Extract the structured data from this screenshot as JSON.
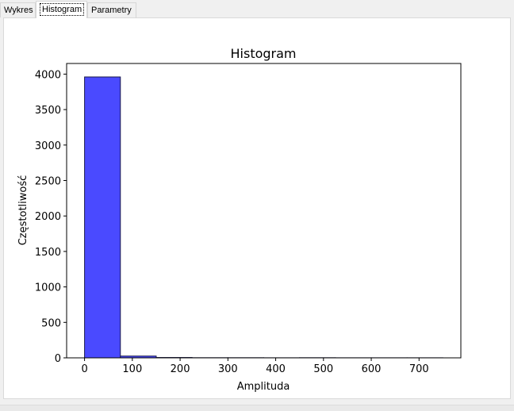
{
  "tabs": [
    {
      "label": "Wykres",
      "active": false
    },
    {
      "label": "Histogram",
      "active": true
    },
    {
      "label": "Parametry",
      "active": false
    }
  ],
  "chart_data": {
    "type": "bar",
    "title": "Histogram",
    "xlabel": "Amplituda",
    "ylabel": "Częstotliwość",
    "xlim": [
      -37.5,
      787.5
    ],
    "ylim": [
      0,
      4150
    ],
    "xticks": [
      0,
      100,
      200,
      300,
      400,
      500,
      600,
      700
    ],
    "yticks": [
      0,
      500,
      1000,
      1500,
      2000,
      2500,
      3000,
      3500,
      4000
    ],
    "bins": [
      {
        "x0": 0,
        "x1": 75,
        "count": 3960
      },
      {
        "x0": 75,
        "x1": 150,
        "count": 25
      },
      {
        "x0": 150,
        "x1": 225,
        "count": 5
      },
      {
        "x0": 225,
        "x1": 300,
        "count": 2
      },
      {
        "x0": 300,
        "x1": 375,
        "count": 2
      },
      {
        "x0": 375,
        "x1": 450,
        "count": 1
      },
      {
        "x0": 450,
        "x1": 525,
        "count": 2
      },
      {
        "x0": 525,
        "x1": 600,
        "count": 1
      },
      {
        "x0": 600,
        "x1": 675,
        "count": 1
      },
      {
        "x0": 675,
        "x1": 750,
        "count": 1
      }
    ],
    "bar_color": "#4a4aff",
    "edge_color": "#1a1a4a",
    "grid": false
  }
}
